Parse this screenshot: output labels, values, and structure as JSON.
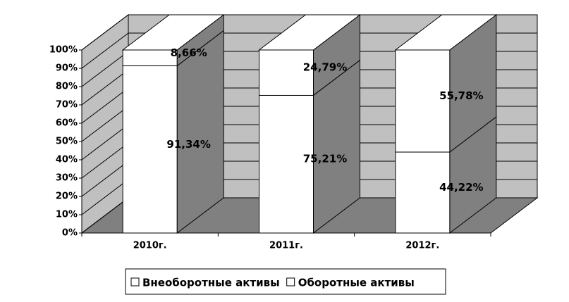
{
  "chart_data": {
    "type": "bar3d_stacked",
    "categories": [
      "2010г.",
      "2011г.",
      "2012г."
    ],
    "series": [
      {
        "name": "Внеоборотные активы",
        "color": "#ffffff",
        "values": [
          91.34,
          75.21,
          44.22
        ],
        "value_labels": [
          "91,34%",
          "75,21%",
          "44,22%"
        ]
      },
      {
        "name": "Оборотные активы",
        "color": "#ffffff",
        "values": [
          8.66,
          24.79,
          55.78
        ],
        "value_labels": [
          "8,66%",
          "24,79%",
          "55,78%"
        ]
      }
    ],
    "ylim": [
      0,
      100
    ],
    "yticks": [
      {
        "value": 0,
        "label": "0%"
      },
      {
        "value": 10,
        "label": "10%"
      },
      {
        "value": 20,
        "label": "20%"
      },
      {
        "value": 30,
        "label": "30%"
      },
      {
        "value": 40,
        "label": "40%"
      },
      {
        "value": 50,
        "label": "50%"
      },
      {
        "value": 60,
        "label": "60%"
      },
      {
        "value": 70,
        "label": "70%"
      },
      {
        "value": 80,
        "label": "80%"
      },
      {
        "value": 90,
        "label": "90%"
      },
      {
        "value": 100,
        "label": "100%"
      }
    ],
    "grid": true,
    "legend": "bottom"
  }
}
